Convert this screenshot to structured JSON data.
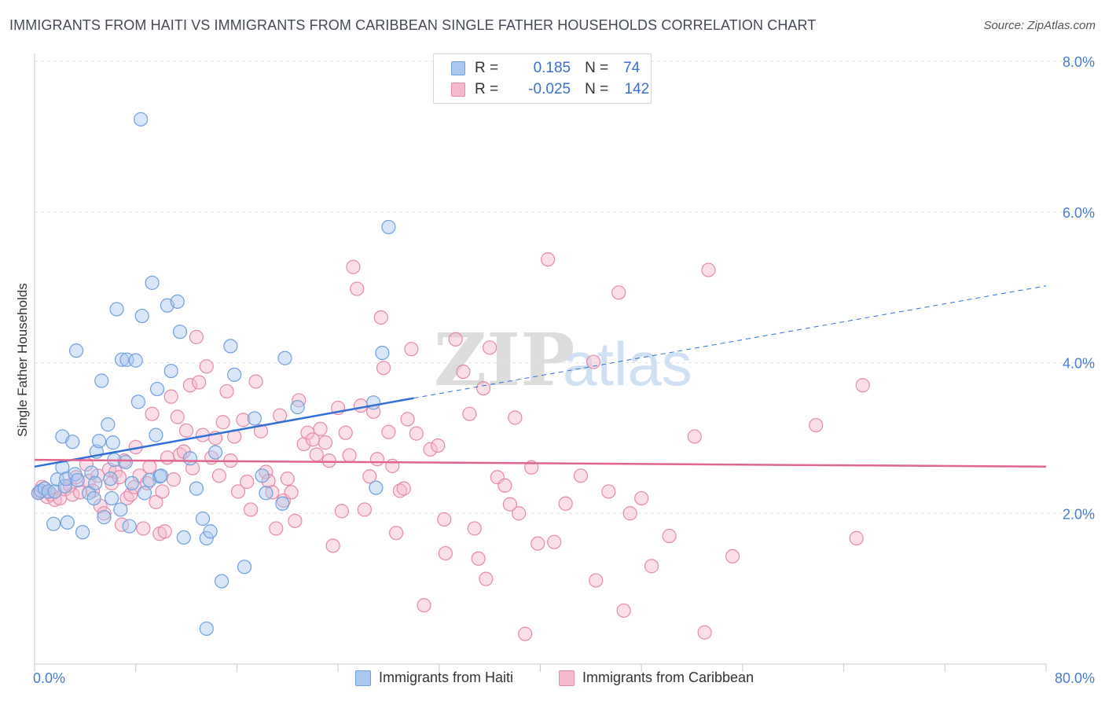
{
  "title": "IMMIGRANTS FROM HAITI VS IMMIGRANTS FROM CARIBBEAN SINGLE FATHER HOUSEHOLDS CORRELATION CHART",
  "source": "Source: ZipAtlas.com",
  "watermark": {
    "zip": "ZIP",
    "atlas": "atlas"
  },
  "legend": {
    "r_label": "R =",
    "n_label": "N =",
    "haiti": {
      "r": "0.185",
      "n": "74"
    },
    "caribbean": {
      "r": "-0.025",
      "n": "142"
    }
  },
  "colors": {
    "haiti_fill": "#a9c8f0",
    "haiti_stroke": "#6f9fdc",
    "haiti_line": "#2f6fd6",
    "caribbean_fill": "#f6b9cc",
    "caribbean_stroke": "#e48aa8",
    "caribbean_line": "#e0668f",
    "axis_label": "#4a7bd0",
    "grid": "#e3e3e3"
  },
  "chart_data": {
    "type": "scatter",
    "ylabel": "Single Father Households",
    "xlim": [
      0,
      80
    ],
    "ylim": [
      0,
      8
    ],
    "x_tick_labels": [
      "0.0%",
      "80.0%"
    ],
    "y_ticks": [
      2,
      4,
      6,
      8
    ],
    "y_tick_labels": [
      "2.0%",
      "4.0%",
      "6.0%",
      "8.0%"
    ],
    "grid": true,
    "series": [
      {
        "name": "Immigrants from Haiti",
        "trend": {
          "x0": 0,
          "y0": 2.62,
          "x1": 30,
          "y1": 3.53,
          "dashed_to_x": 80,
          "dashed_to_y": 5.02
        },
        "points": [
          [
            0.3,
            2.27
          ],
          [
            0.5,
            2.3
          ],
          [
            0.8,
            2.33
          ],
          [
            1.1,
            2.29
          ],
          [
            1.5,
            1.86
          ],
          [
            1.8,
            2.45
          ],
          [
            1.6,
            2.29
          ],
          [
            2.2,
            2.61
          ],
          [
            2.4,
            2.36
          ],
          [
            2.5,
            2.46
          ],
          [
            2.6,
            1.88
          ],
          [
            2.2,
            3.02
          ],
          [
            3.2,
            2.52
          ],
          [
            3.0,
            2.95
          ],
          [
            3.4,
            2.44
          ],
          [
            3.8,
            1.75
          ],
          [
            4.3,
            2.27
          ],
          [
            4.5,
            2.54
          ],
          [
            4.7,
            2.2
          ],
          [
            4.8,
            2.4
          ],
          [
            3.3,
            4.16
          ],
          [
            4.9,
            2.82
          ],
          [
            5.1,
            2.96
          ],
          [
            5.3,
            3.76
          ],
          [
            5.5,
            1.95
          ],
          [
            5.8,
            3.18
          ],
          [
            6.1,
            2.2
          ],
          [
            6.0,
            2.46
          ],
          [
            6.2,
            2.94
          ],
          [
            6.3,
            2.71
          ],
          [
            6.5,
            4.71
          ],
          [
            6.9,
            4.04
          ],
          [
            7.2,
            2.68
          ],
          [
            7.3,
            4.04
          ],
          [
            7.5,
            1.83
          ],
          [
            7.7,
            2.4
          ],
          [
            8.0,
            4.03
          ],
          [
            8.2,
            3.48
          ],
          [
            8.4,
            7.23
          ],
          [
            8.5,
            4.62
          ],
          [
            8.7,
            2.27
          ],
          [
            9.1,
            2.44
          ],
          [
            9.3,
            5.06
          ],
          [
            9.6,
            3.04
          ],
          [
            9.7,
            3.65
          ],
          [
            9.9,
            2.49
          ],
          [
            10.5,
            4.76
          ],
          [
            10.8,
            3.89
          ],
          [
            11.3,
            4.81
          ],
          [
            11.5,
            4.41
          ],
          [
            11.8,
            1.68
          ],
          [
            12.3,
            2.73
          ],
          [
            12.8,
            2.33
          ],
          [
            13.3,
            1.93
          ],
          [
            13.6,
            1.67
          ],
          [
            13.9,
            1.76
          ],
          [
            14.3,
            2.81
          ],
          [
            14.8,
            1.1
          ],
          [
            15.5,
            4.22
          ],
          [
            15.8,
            3.84
          ],
          [
            16.6,
            1.29
          ],
          [
            17.4,
            3.26
          ],
          [
            18.3,
            2.27
          ],
          [
            19.6,
            2.13
          ],
          [
            19.8,
            4.06
          ],
          [
            20.8,
            3.41
          ],
          [
            26.8,
            3.47
          ],
          [
            27.0,
            2.34
          ],
          [
            27.5,
            4.13
          ],
          [
            28.0,
            5.8
          ],
          [
            13.6,
            0.47
          ],
          [
            18.0,
            2.5
          ],
          [
            10.0,
            2.5
          ],
          [
            6.8,
            2.05
          ]
        ]
      },
      {
        "name": "Immigrants from Caribbean",
        "trend": {
          "x0": 0,
          "y0": 2.71,
          "x1": 80,
          "y1": 2.62
        },
        "points": [
          [
            0.4,
            2.28
          ],
          [
            0.6,
            2.35
          ],
          [
            1.0,
            2.22
          ],
          [
            1.3,
            2.25
          ],
          [
            1.6,
            2.18
          ],
          [
            2.0,
            2.2
          ],
          [
            2.4,
            2.32
          ],
          [
            2.8,
            2.37
          ],
          [
            3.0,
            2.25
          ],
          [
            3.3,
            2.48
          ],
          [
            3.6,
            2.28
          ],
          [
            4.1,
            2.65
          ],
          [
            4.3,
            2.43
          ],
          [
            4.6,
            2.3
          ],
          [
            5.0,
            2.5
          ],
          [
            5.2,
            2.1
          ],
          [
            5.5,
            2.0
          ],
          [
            5.9,
            2.58
          ],
          [
            6.1,
            2.4
          ],
          [
            6.4,
            2.55
          ],
          [
            6.7,
            2.48
          ],
          [
            6.9,
            1.85
          ],
          [
            7.1,
            2.7
          ],
          [
            7.3,
            2.2
          ],
          [
            7.6,
            2.25
          ],
          [
            7.9,
            2.35
          ],
          [
            8.0,
            2.88
          ],
          [
            8.3,
            2.5
          ],
          [
            8.6,
            1.8
          ],
          [
            8.9,
            2.4
          ],
          [
            9.1,
            2.62
          ],
          [
            9.3,
            3.32
          ],
          [
            9.6,
            2.15
          ],
          [
            9.9,
            1.73
          ],
          [
            10.1,
            2.29
          ],
          [
            10.3,
            1.76
          ],
          [
            10.5,
            2.74
          ],
          [
            10.8,
            3.55
          ],
          [
            11.0,
            2.45
          ],
          [
            11.3,
            3.28
          ],
          [
            11.5,
            2.78
          ],
          [
            11.8,
            2.82
          ],
          [
            12.0,
            3.1
          ],
          [
            12.3,
            3.7
          ],
          [
            12.5,
            2.6
          ],
          [
            12.8,
            4.34
          ],
          [
            13.0,
            3.74
          ],
          [
            13.3,
            3.04
          ],
          [
            13.6,
            3.95
          ],
          [
            14.0,
            2.74
          ],
          [
            14.3,
            3.0
          ],
          [
            14.6,
            2.5
          ],
          [
            14.9,
            3.21
          ],
          [
            15.2,
            3.62
          ],
          [
            15.5,
            2.7
          ],
          [
            15.8,
            3.02
          ],
          [
            16.1,
            2.29
          ],
          [
            16.5,
            3.24
          ],
          [
            16.8,
            2.42
          ],
          [
            17.1,
            2.05
          ],
          [
            17.5,
            3.75
          ],
          [
            17.9,
            3.09
          ],
          [
            18.3,
            2.55
          ],
          [
            18.5,
            2.43
          ],
          [
            18.8,
            2.28
          ],
          [
            19.1,
            1.8
          ],
          [
            19.4,
            3.3
          ],
          [
            19.7,
            2.17
          ],
          [
            20.0,
            2.46
          ],
          [
            20.3,
            2.28
          ],
          [
            20.6,
            1.9
          ],
          [
            20.9,
            3.5
          ],
          [
            21.3,
            2.92
          ],
          [
            21.6,
            3.07
          ],
          [
            22.0,
            2.98
          ],
          [
            22.3,
            2.78
          ],
          [
            22.6,
            3.12
          ],
          [
            23.0,
            2.94
          ],
          [
            23.3,
            2.7
          ],
          [
            23.6,
            1.57
          ],
          [
            24.0,
            3.4
          ],
          [
            24.3,
            2.03
          ],
          [
            24.6,
            3.07
          ],
          [
            24.9,
            2.77
          ],
          [
            25.2,
            5.27
          ],
          [
            25.5,
            4.98
          ],
          [
            25.8,
            3.43
          ],
          [
            26.1,
            2.05
          ],
          [
            26.5,
            2.49
          ],
          [
            26.8,
            3.35
          ],
          [
            27.1,
            2.72
          ],
          [
            27.4,
            4.6
          ],
          [
            27.6,
            3.93
          ],
          [
            28.0,
            3.08
          ],
          [
            28.3,
            2.63
          ],
          [
            28.6,
            1.74
          ],
          [
            28.9,
            2.3
          ],
          [
            29.2,
            2.33
          ],
          [
            29.5,
            3.25
          ],
          [
            29.8,
            4.18
          ],
          [
            30.2,
            3.06
          ],
          [
            30.8,
            0.78
          ],
          [
            31.3,
            2.85
          ],
          [
            31.9,
            2.9
          ],
          [
            32.4,
            1.92
          ],
          [
            32.5,
            1.47
          ],
          [
            33.3,
            4.31
          ],
          [
            33.9,
            3.88
          ],
          [
            34.4,
            3.32
          ],
          [
            34.8,
            1.8
          ],
          [
            35.1,
            1.4
          ],
          [
            35.5,
            3.66
          ],
          [
            35.7,
            1.13
          ],
          [
            36.0,
            4.2
          ],
          [
            36.6,
            2.48
          ],
          [
            37.2,
            2.37
          ],
          [
            37.6,
            2.12
          ],
          [
            38.0,
            3.27
          ],
          [
            38.3,
            2.0
          ],
          [
            38.8,
            0.4
          ],
          [
            39.3,
            2.61
          ],
          [
            39.8,
            1.6
          ],
          [
            40.6,
            5.37
          ],
          [
            41.1,
            1.62
          ],
          [
            42.0,
            2.13
          ],
          [
            43.2,
            2.5
          ],
          [
            44.2,
            4.01
          ],
          [
            44.4,
            1.11
          ],
          [
            45.4,
            2.29
          ],
          [
            46.2,
            4.93
          ],
          [
            46.6,
            0.71
          ],
          [
            47.1,
            2.0
          ],
          [
            48.0,
            2.2
          ],
          [
            48.8,
            1.3
          ],
          [
            50.2,
            1.7
          ],
          [
            52.2,
            3.02
          ],
          [
            53.0,
            0.42
          ],
          [
            53.3,
            5.23
          ],
          [
            55.2,
            1.43
          ],
          [
            61.8,
            3.17
          ],
          [
            65.0,
            1.67
          ],
          [
            65.5,
            3.7
          ]
        ]
      }
    ]
  },
  "bottom_legend": [
    "Immigrants from Haiti",
    "Immigrants from Caribbean"
  ]
}
